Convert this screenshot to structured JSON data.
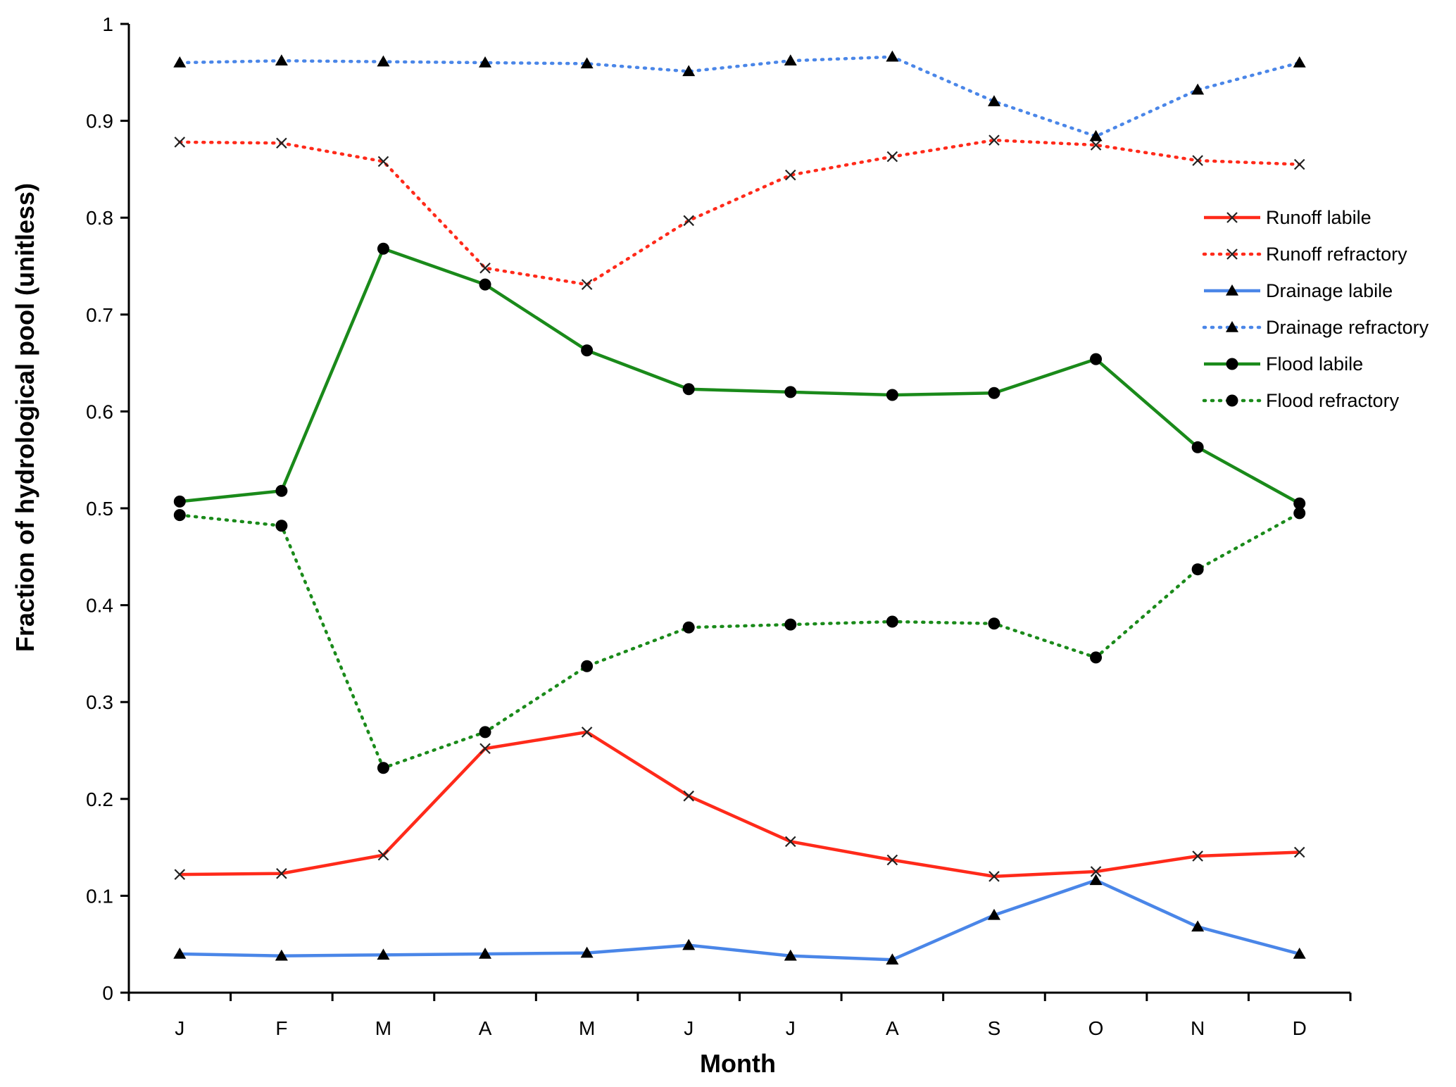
{
  "chart_data": {
    "type": "line",
    "title": "",
    "xlabel": "Month",
    "ylabel": "Fraction of hydrological pool (unitless)",
    "categories": [
      "J",
      "F",
      "M",
      "A",
      "M",
      "J",
      "J",
      "A",
      "S",
      "O",
      "N",
      "D"
    ],
    "ylim": [
      0,
      1
    ],
    "yticks": [
      "0",
      "0.1",
      "0.2",
      "0.3",
      "0.4",
      "0.5",
      "0.6",
      "0.7",
      "0.8",
      "0.9",
      "1"
    ],
    "grid": false,
    "legend_position": "right",
    "series": [
      {
        "name": "Runoff labile",
        "color": "#ff2a1a",
        "dash": "solid",
        "marker": "x",
        "values": [
          0.122,
          0.123,
          0.142,
          0.252,
          0.269,
          0.203,
          0.156,
          0.137,
          0.12,
          0.125,
          0.141,
          0.145
        ]
      },
      {
        "name": "Runoff refractory",
        "color": "#ff2a1a",
        "dash": "dotted",
        "marker": "x",
        "values": [
          0.878,
          0.877,
          0.858,
          0.748,
          0.731,
          0.797,
          0.844,
          0.863,
          0.88,
          0.875,
          0.859,
          0.855
        ]
      },
      {
        "name": "Drainage labile",
        "color": "#4a86e8",
        "dash": "solid",
        "marker": "triangle",
        "values": [
          0.04,
          0.038,
          0.039,
          0.04,
          0.041,
          0.049,
          0.038,
          0.034,
          0.08,
          0.116,
          0.068,
          0.04
        ]
      },
      {
        "name": "Drainage refractory",
        "color": "#4a86e8",
        "dash": "dotted",
        "marker": "triangle",
        "values": [
          0.96,
          0.962,
          0.961,
          0.96,
          0.959,
          0.951,
          0.962,
          0.966,
          0.92,
          0.884,
          0.932,
          0.96
        ]
      },
      {
        "name": "Flood labile",
        "color": "#1a8a1a",
        "dash": "solid",
        "marker": "circle",
        "values": [
          0.507,
          0.518,
          0.768,
          0.731,
          0.663,
          0.623,
          0.62,
          0.617,
          0.619,
          0.654,
          0.563,
          0.505
        ]
      },
      {
        "name": "Flood refractory",
        "color": "#1a8a1a",
        "dash": "dotted",
        "marker": "circle",
        "values": [
          0.493,
          0.482,
          0.232,
          0.269,
          0.337,
          0.377,
          0.38,
          0.383,
          0.381,
          0.346,
          0.437,
          0.495
        ]
      }
    ]
  }
}
